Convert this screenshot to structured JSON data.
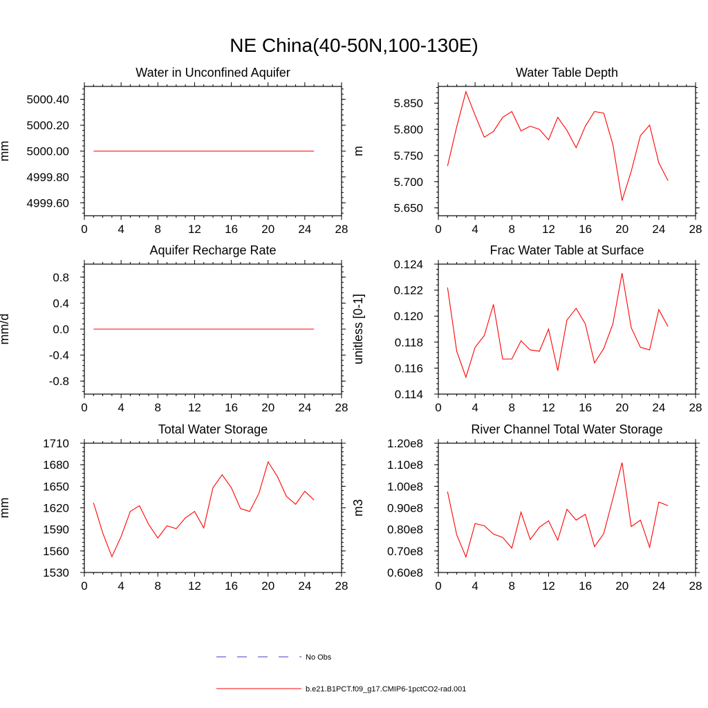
{
  "figure": {
    "title": "NE China(40-50N,100-130E)"
  },
  "legend": {
    "items": [
      {
        "label": "No Obs",
        "color": "#3b3bbf",
        "style": "dashed"
      },
      {
        "label": "b.e21.B1PCT.f09_g17.CMIP6-1pctCO2-rad.001",
        "color": "#ff0000",
        "style": "solid"
      }
    ]
  },
  "chart_data": [
    {
      "type": "line",
      "title": "Water in Unconfined Aquifer",
      "ylabel": "mm",
      "xlim": [
        0,
        28
      ],
      "ylim": [
        4999.5,
        5000.5
      ],
      "xticks": [
        "0",
        "4",
        "8",
        "12",
        "16",
        "20",
        "24",
        "28"
      ],
      "yticks": [
        4999.6,
        4999.8,
        5000.0,
        5000.2,
        5000.4
      ],
      "ytick_labels": [
        "4999.60",
        "4999.80",
        "5000.00",
        "5000.20",
        "5000.40"
      ],
      "grid": false,
      "x": [
        1,
        2,
        3,
        4,
        5,
        6,
        7,
        8,
        9,
        10,
        11,
        12,
        13,
        14,
        15,
        16,
        17,
        18,
        19,
        20,
        21,
        22,
        23,
        24,
        25
      ],
      "series": [
        {
          "name": "b.e21.B1PCT.f09_g17.CMIP6-1pctCO2-rad.001",
          "color": "#ff0000",
          "values": [
            5000,
            5000,
            5000,
            5000,
            5000,
            5000,
            5000,
            5000,
            5000,
            5000,
            5000,
            5000,
            5000,
            5000,
            5000,
            5000,
            5000,
            5000,
            5000,
            5000,
            5000,
            5000,
            5000,
            5000,
            5000
          ]
        }
      ]
    },
    {
      "type": "line",
      "title": "Water Table Depth",
      "ylabel": "m",
      "xlim": [
        0,
        28
      ],
      "ylim": [
        5.635,
        5.882
      ],
      "xticks": [
        "0",
        "4",
        "8",
        "12",
        "16",
        "20",
        "24",
        "28"
      ],
      "yticks": [
        5.65,
        5.7,
        5.75,
        5.8,
        5.85
      ],
      "ytick_labels": [
        "5.650",
        "5.700",
        "5.750",
        "5.800",
        "5.850"
      ],
      "grid": false,
      "x": [
        1,
        2,
        3,
        4,
        5,
        6,
        7,
        8,
        9,
        10,
        11,
        12,
        13,
        14,
        15,
        16,
        17,
        18,
        19,
        20,
        21,
        22,
        23,
        24,
        25
      ],
      "series": [
        {
          "name": "b.e21.B1PCT.f09_g17.CMIP6-1pctCO2-rad.001",
          "color": "#ff0000",
          "values": [
            5.73,
            5.805,
            5.872,
            5.827,
            5.785,
            5.796,
            5.823,
            5.834,
            5.797,
            5.806,
            5.8,
            5.78,
            5.823,
            5.798,
            5.765,
            5.806,
            5.834,
            5.831,
            5.771,
            5.664,
            5.72,
            5.788,
            5.808,
            5.736,
            5.702
          ]
        }
      ]
    },
    {
      "type": "line",
      "title": "Aquifer Recharge Rate",
      "ylabel": "mm/d",
      "xlim": [
        0,
        28
      ],
      "ylim": [
        -1.0,
        1.0
      ],
      "xticks": [
        "0",
        "4",
        "8",
        "12",
        "16",
        "20",
        "24",
        "28"
      ],
      "yticks": [
        -0.8,
        -0.4,
        0.0,
        0.4,
        0.8
      ],
      "ytick_labels": [
        "-0.8",
        "-0.4",
        "0.0",
        "0.4",
        "0.8"
      ],
      "grid": false,
      "x": [
        1,
        2,
        3,
        4,
        5,
        6,
        7,
        8,
        9,
        10,
        11,
        12,
        13,
        14,
        15,
        16,
        17,
        18,
        19,
        20,
        21,
        22,
        23,
        24,
        25
      ],
      "series": [
        {
          "name": "b.e21.B1PCT.f09_g17.CMIP6-1pctCO2-rad.001",
          "color": "#ff0000",
          "values": [
            0,
            0,
            0,
            0,
            0,
            0,
            0,
            0,
            0,
            0,
            0,
            0,
            0,
            0,
            0,
            0,
            0,
            0,
            0,
            0,
            0,
            0,
            0,
            0,
            0
          ]
        }
      ]
    },
    {
      "type": "line",
      "title": "Frac Water Table at Surface",
      "ylabel": "unitless [0-1]",
      "xlim": [
        0,
        28
      ],
      "ylim": [
        0.114,
        0.124
      ],
      "xticks": [
        "0",
        "4",
        "8",
        "12",
        "16",
        "20",
        "24",
        "28"
      ],
      "yticks": [
        0.114,
        0.116,
        0.118,
        0.12,
        0.122,
        0.124
      ],
      "ytick_labels": [
        "0.114",
        "0.116",
        "0.118",
        "0.120",
        "0.122",
        "0.124"
      ],
      "grid": false,
      "x": [
        1,
        2,
        3,
        4,
        5,
        6,
        7,
        8,
        9,
        10,
        11,
        12,
        13,
        14,
        15,
        16,
        17,
        18,
        19,
        20,
        21,
        22,
        23,
        24,
        25
      ],
      "series": [
        {
          "name": "b.e21.B1PCT.f09_g17.CMIP6-1pctCO2-rad.001",
          "color": "#ff0000",
          "values": [
            0.1222,
            0.1173,
            0.1153,
            0.1176,
            0.1185,
            0.1209,
            0.1167,
            0.1167,
            0.1181,
            0.1174,
            0.1173,
            0.119,
            0.1158,
            0.1197,
            0.1206,
            0.1194,
            0.1164,
            0.1175,
            0.1194,
            0.1233,
            0.1191,
            0.1176,
            0.1174,
            0.1205,
            0.1192
          ]
        }
      ]
    },
    {
      "type": "line",
      "title": "Total Water Storage",
      "ylabel": "mm",
      "xlim": [
        0,
        28
      ],
      "ylim": [
        1530,
        1710
      ],
      "xticks": [
        "0",
        "4",
        "8",
        "12",
        "16",
        "20",
        "24",
        "28"
      ],
      "yticks": [
        1530,
        1560,
        1590,
        1620,
        1650,
        1680,
        1710
      ],
      "ytick_labels": [
        "1530",
        "1560",
        "1590",
        "1620",
        "1650",
        "1680",
        "1710"
      ],
      "grid": false,
      "x": [
        1,
        2,
        3,
        4,
        5,
        6,
        7,
        8,
        9,
        10,
        11,
        12,
        13,
        14,
        15,
        16,
        17,
        18,
        19,
        20,
        21,
        22,
        23,
        24,
        25
      ],
      "series": [
        {
          "name": "b.e21.B1PCT.f09_g17.CMIP6-1pctCO2-rad.001",
          "color": "#ff0000",
          "values": [
            1627,
            1585,
            1552,
            1580,
            1615,
            1623,
            1597,
            1578,
            1595,
            1591,
            1606,
            1615,
            1592,
            1648,
            1666,
            1648,
            1619,
            1615,
            1640,
            1684,
            1664,
            1636,
            1625,
            1643,
            1631
          ]
        }
      ]
    },
    {
      "type": "line",
      "title": "River Channel Total Water Storage",
      "ylabel": "m3",
      "xlim": [
        0,
        28
      ],
      "ylim": [
        60000000.0,
        120000000.0
      ],
      "xticks": [
        "0",
        "4",
        "8",
        "12",
        "16",
        "20",
        "24",
        "28"
      ],
      "yticks": [
        60000000.0,
        70000000.0,
        80000000.0,
        90000000.0,
        100000000.0,
        110000000.0,
        120000000.0
      ],
      "ytick_labels": [
        "0.60e8",
        "0.70e8",
        "0.80e8",
        "0.90e8",
        "1.00e8",
        "1.10e8",
        "1.20e8"
      ],
      "grid": false,
      "x": [
        1,
        2,
        3,
        4,
        5,
        6,
        7,
        8,
        9,
        10,
        11,
        12,
        13,
        14,
        15,
        16,
        17,
        18,
        19,
        20,
        21,
        22,
        23,
        24,
        25
      ],
      "series": [
        {
          "name": "b.e21.B1PCT.f09_g17.CMIP6-1pctCO2-rad.001",
          "color": "#ff0000",
          "values": [
            97500000.0,
            77500000.0,
            67200000.0,
            82700000.0,
            81700000.0,
            77800000.0,
            76300000.0,
            71300000.0,
            88000000.0,
            75300000.0,
            81000000.0,
            84000000.0,
            75000000.0,
            89300000.0,
            84300000.0,
            87000000.0,
            72000000.0,
            78000000.0,
            94300000.0,
            111000000.0,
            81300000.0,
            84300000.0,
            71700000.0,
            92700000.0,
            91000000.0
          ]
        }
      ]
    }
  ]
}
